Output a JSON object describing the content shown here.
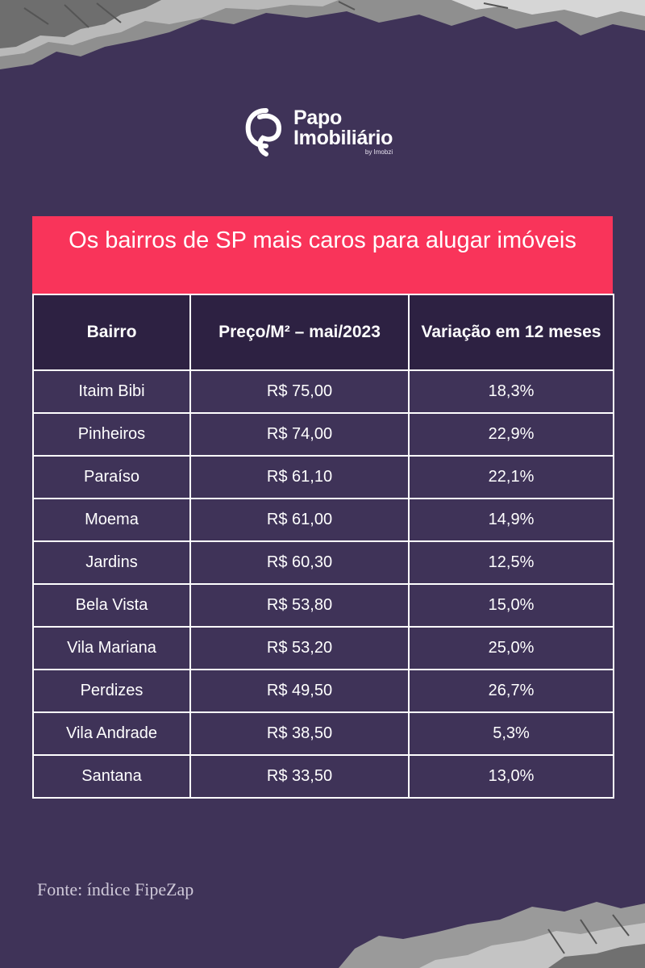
{
  "brand": {
    "name_line1": "Papo",
    "name_line2": "Imobiliário",
    "byline": "by Imobzi"
  },
  "table": {
    "title": "Os bairros de SP mais caros para alugar imóveis",
    "headers": [
      "Bairro",
      "Preço/M² – mai/2023",
      "Variação em 12 meses"
    ],
    "rows": [
      [
        "Itaim Bibi",
        "R$ 75,00",
        "18,3%"
      ],
      [
        "Pinheiros",
        "R$ 74,00",
        "22,9%"
      ],
      [
        "Paraíso",
        "R$ 61,10",
        "22,1%"
      ],
      [
        "Moema",
        "R$ 61,00",
        "14,9%"
      ],
      [
        "Jardins",
        "R$ 60,30",
        "12,5%"
      ],
      [
        "Bela Vista",
        "R$ 53,80",
        "15,0%"
      ],
      [
        "Vila Mariana",
        "R$ 53,20",
        "25,0%"
      ],
      [
        "Perdizes",
        "R$ 49,50",
        "26,7%"
      ],
      [
        "Vila Andrade",
        "R$ 38,50",
        "5,3%"
      ],
      [
        "Santana",
        "R$ 33,50",
        "13,0%"
      ]
    ]
  },
  "source": "Fonte: índice FipeZap",
  "colors": {
    "background": "#3f3358",
    "title_bar": "#f9345a",
    "header_bg": "#2d2142",
    "text": "#ffffff"
  }
}
